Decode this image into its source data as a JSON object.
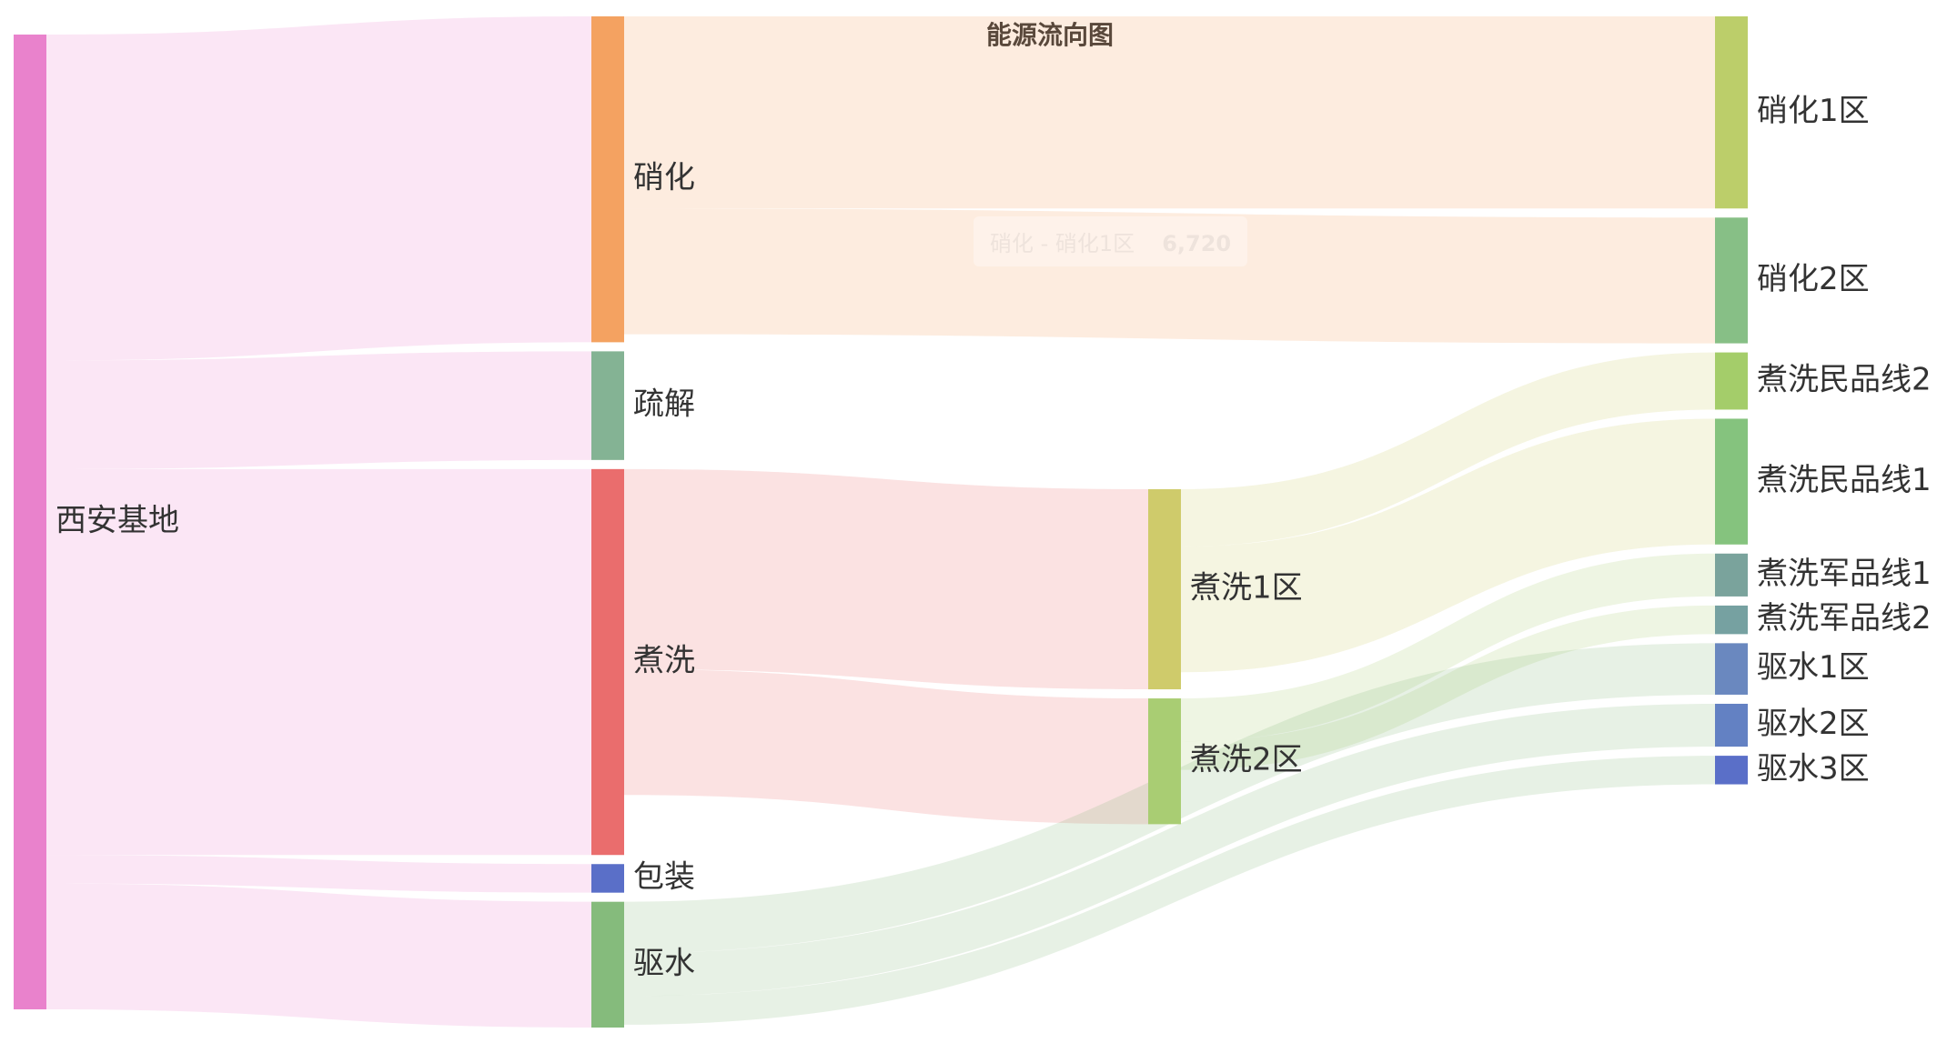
{
  "chart_data": {
    "type": "sankey",
    "title": "能源流向图",
    "nodes": [
      {
        "name": "西安基地",
        "color": "#e982cc",
        "depth": 0
      },
      {
        "name": "硝化",
        "color": "#f4a261",
        "depth": 1
      },
      {
        "name": "疏解",
        "color": "#84b394",
        "depth": 1
      },
      {
        "name": "煮洗",
        "color": "#ea6d6d",
        "depth": 1
      },
      {
        "name": "包装",
        "color": "#5a6fc8",
        "depth": 1
      },
      {
        "name": "驱水",
        "color": "#85bb7c",
        "depth": 1
      },
      {
        "name": "煮洗1区",
        "color": "#cfcb6b",
        "depth": 2
      },
      {
        "name": "煮洗2区",
        "color": "#a9cd73",
        "depth": 2
      },
      {
        "name": "硝化1区",
        "color": "#bcce6a",
        "depth": 3
      },
      {
        "name": "硝化2区",
        "color": "#87bf86",
        "depth": 3
      },
      {
        "name": "煮洗民品线2",
        "color": "#a4cd6a",
        "depth": 3
      },
      {
        "name": "煮洗民品线1",
        "color": "#85c37e",
        "depth": 3
      },
      {
        "name": "煮洗军品线1",
        "color": "#7aa39c",
        "depth": 3
      },
      {
        "name": "煮洗军品线2",
        "color": "#76a1a1",
        "depth": 3
      },
      {
        "name": "驱水1区",
        "color": "#6a88bf",
        "depth": 3
      },
      {
        "name": "驱水2区",
        "color": "#6381c3",
        "depth": 3
      },
      {
        "name": "驱水3区",
        "color": "#5a6fc8",
        "depth": 3
      }
    ],
    "links": [
      {
        "source": "西安基地",
        "target": "硝化",
        "value": 11400
      },
      {
        "source": "西安基地",
        "target": "疏解",
        "value": 3800
      },
      {
        "source": "西安基地",
        "target": "煮洗",
        "value": 13500
      },
      {
        "source": "西安基地",
        "target": "包装",
        "value": 1000
      },
      {
        "source": "西安基地",
        "target": "驱水",
        "value": 4400
      },
      {
        "source": "硝化",
        "target": "硝化1区",
        "value": 6720
      },
      {
        "source": "硝化",
        "target": "硝化2区",
        "value": 4400
      },
      {
        "source": "煮洗",
        "target": "煮洗1区",
        "value": 7000
      },
      {
        "source": "煮洗",
        "target": "煮洗2区",
        "value": 4400
      },
      {
        "source": "煮洗1区",
        "target": "煮洗民品线2",
        "value": 2000
      },
      {
        "source": "煮洗1区",
        "target": "煮洗民品线1",
        "value": 4400
      },
      {
        "source": "煮洗2区",
        "target": "煮洗军品线1",
        "value": 1500
      },
      {
        "source": "煮洗2区",
        "target": "煮洗军品线2",
        "value": 1000
      },
      {
        "source": "驱水",
        "target": "驱水1区",
        "value": 1800
      },
      {
        "source": "驱水",
        "target": "驱水2区",
        "value": 1500
      },
      {
        "source": "驱水",
        "target": "驱水3区",
        "value": 1000
      }
    ],
    "tooltip": {
      "text": "硝化 - 硝化1区",
      "value": "6,720"
    }
  }
}
